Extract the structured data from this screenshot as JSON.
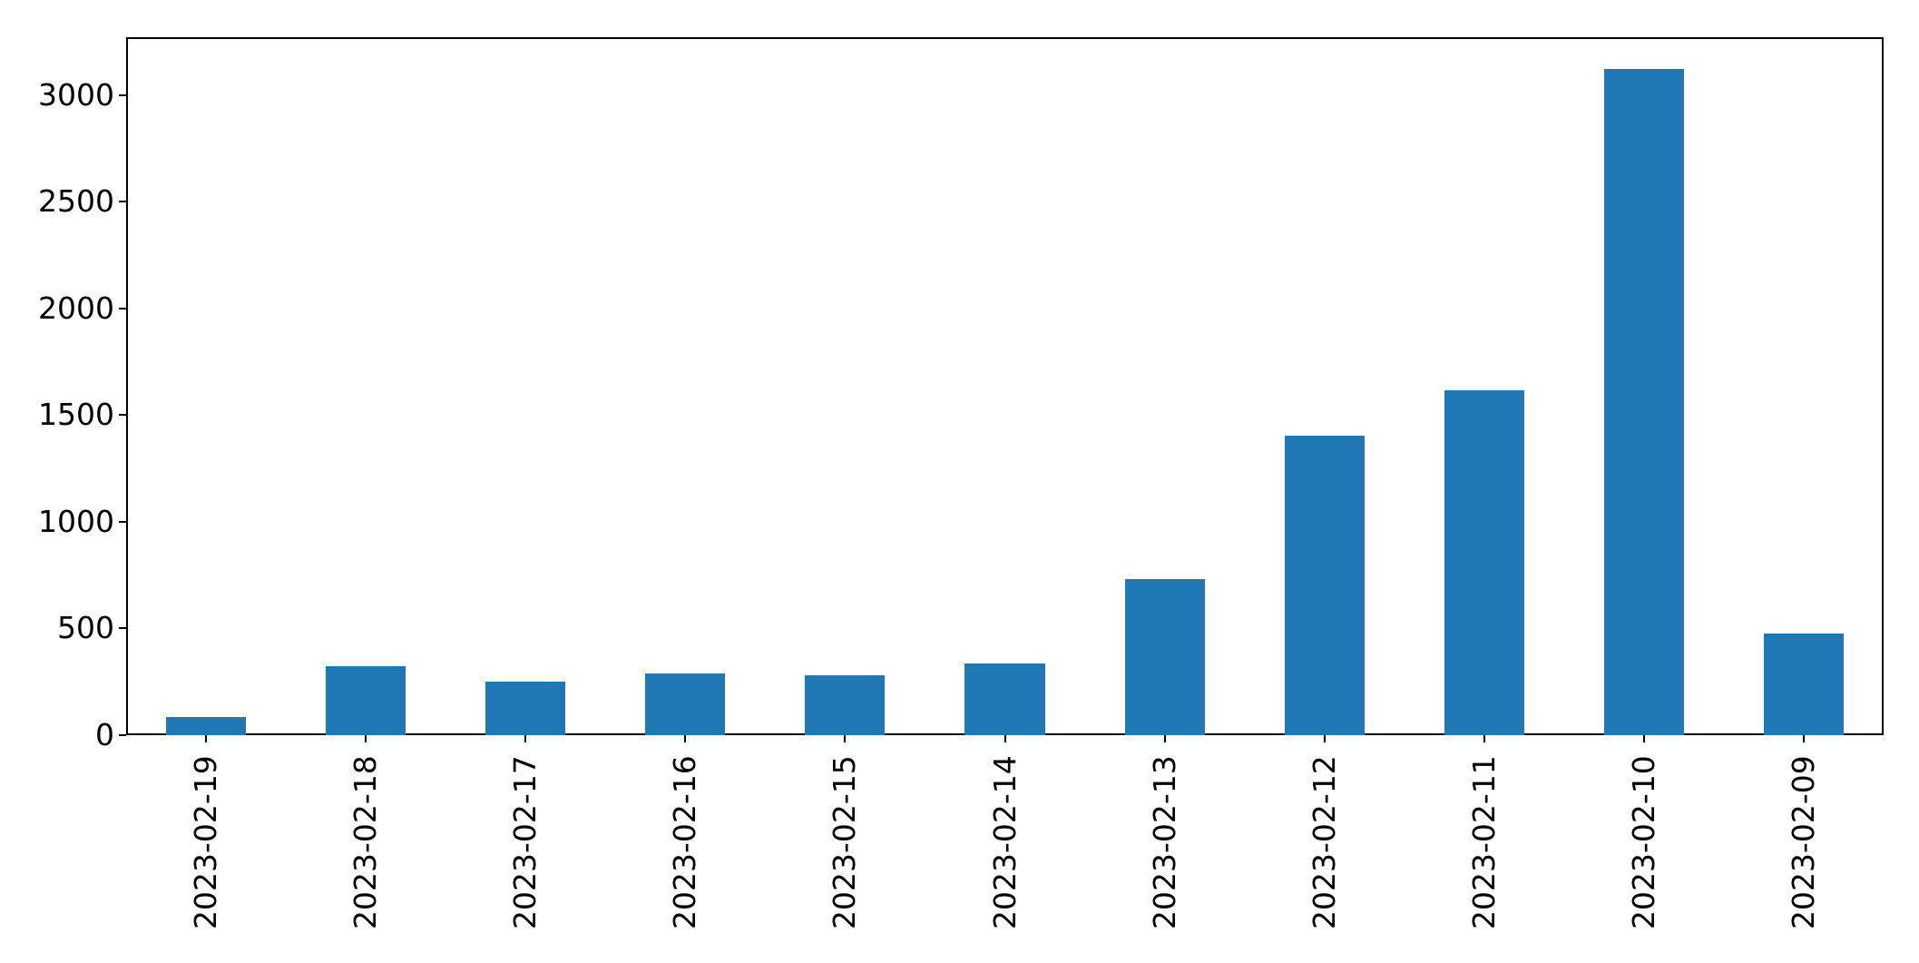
{
  "chart_data": {
    "type": "bar",
    "title": "",
    "xlabel": "",
    "ylabel": "",
    "categories": [
      "2023-02-19",
      "2023-02-18",
      "2023-02-17",
      "2023-02-16",
      "2023-02-15",
      "2023-02-14",
      "2023-02-13",
      "2023-02-12",
      "2023-02-11",
      "2023-02-10",
      "2023-02-09"
    ],
    "values": [
      85,
      322,
      252,
      291,
      281,
      337,
      731,
      1404,
      1617,
      3121,
      478
    ],
    "yticks": [
      0,
      500,
      1000,
      1500,
      2000,
      2500,
      3000
    ],
    "ylim": [
      0,
      3272
    ],
    "xtick_rotation": 90,
    "grid": false,
    "legend": "none",
    "bar_color": "#1f77b4",
    "axis_color": "#000000",
    "tick_label_color": "#000000",
    "background_color": "#ffffff"
  }
}
